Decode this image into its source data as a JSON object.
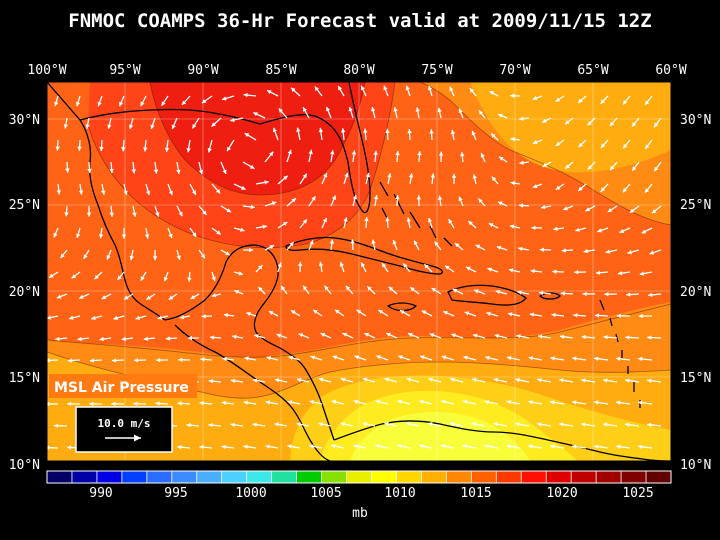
{
  "title": "FNMOC COAMPS 36-Hr Forecast valid at 2009/11/15 12Z",
  "lon_labels": [
    "100°W",
    "95°W",
    "90°W",
    "85°W",
    "80°W",
    "75°W",
    "70°W",
    "65°W",
    "60°W"
  ],
  "lat_labels": [
    "30°N",
    "25°N",
    "20°N",
    "15°N",
    "10°N"
  ],
  "field_label": "MSL Air Pressure",
  "vector_ref_label": "10.0 m/s",
  "colorbar": {
    "unit": "mb",
    "tick_labels": [
      "990",
      "995",
      "1000",
      "1005",
      "1010",
      "1015",
      "1020",
      "1025"
    ],
    "colors": [
      "#000066",
      "#0000a8",
      "#0000e6",
      "#0040ff",
      "#2a6cff",
      "#3c8cff",
      "#4aaeff",
      "#4cd0ff",
      "#3ce8e8",
      "#22e0a0",
      "#00cc00",
      "#88e000",
      "#e8f000",
      "#ffff00",
      "#ffd800",
      "#ffb000",
      "#ff8800",
      "#ff6000",
      "#ff3800",
      "#ff1000",
      "#e00000",
      "#c00000",
      "#a00000",
      "#800000",
      "#600000"
    ]
  },
  "shade_colors": {
    "p1021": "#ee1e10",
    "p1018": "#ff4418",
    "p1016": "#ff6416",
    "p1014": "#ff8a14",
    "p1012": "#ffac10",
    "p1010": "#ffce16",
    "p1009": "#ffec20",
    "p1008": "#f8ff3a"
  }
}
